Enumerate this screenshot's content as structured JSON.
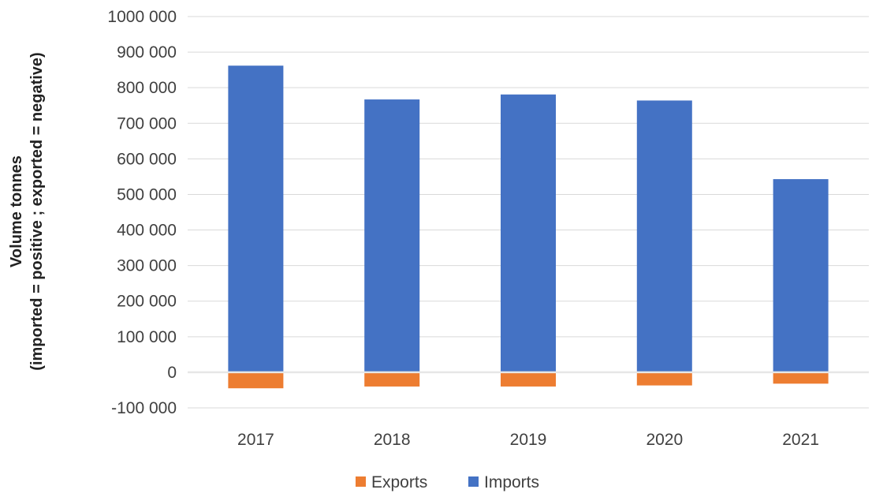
{
  "chart_data": {
    "type": "bar",
    "stacked": true,
    "categories": [
      "2017",
      "2018",
      "2019",
      "2020",
      "2021"
    ],
    "series": [
      {
        "name": "Exports",
        "color": "#ED7D31",
        "values": [
          -45000,
          -40000,
          -40000,
          -37000,
          -32000
        ]
      },
      {
        "name": "Imports",
        "color": "#4472C4",
        "values": [
          862000,
          767000,
          781000,
          764000,
          543000
        ]
      }
    ],
    "ylabel_line1": "Volume tonnes",
    "ylabel_line2": "(imported = positive ; exported = negative)",
    "ylim": [
      -100000,
      1000000
    ],
    "yticks": [
      1000000,
      900000,
      800000,
      700000,
      600000,
      500000,
      400000,
      300000,
      200000,
      100000,
      0,
      -100000
    ],
    "ytick_labels": [
      "1000 000",
      "900 000",
      "800 000",
      "700 000",
      "600 000",
      "500 000",
      "400 000",
      "300 000",
      "200 000",
      "100 000",
      "0",
      "-100 000"
    ],
    "legend_position": "bottom",
    "legend_order": [
      "Exports",
      "Imports"
    ],
    "grid": true
  }
}
